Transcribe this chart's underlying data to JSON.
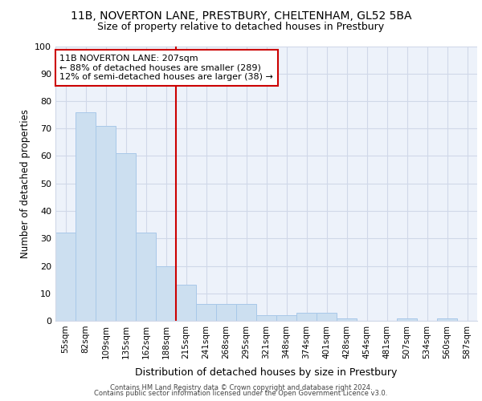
{
  "title1": "11B, NOVERTON LANE, PRESTBURY, CHELTENHAM, GL52 5BA",
  "title2": "Size of property relative to detached houses in Prestbury",
  "xlabel": "Distribution of detached houses by size in Prestbury",
  "ylabel": "Number of detached properties",
  "categories": [
    "55sqm",
    "82sqm",
    "109sqm",
    "135sqm",
    "162sqm",
    "188sqm",
    "215sqm",
    "241sqm",
    "268sqm",
    "295sqm",
    "321sqm",
    "348sqm",
    "374sqm",
    "401sqm",
    "428sqm",
    "454sqm",
    "481sqm",
    "507sqm",
    "534sqm",
    "560sqm",
    "587sqm"
  ],
  "values": [
    32,
    76,
    71,
    61,
    32,
    20,
    13,
    6,
    6,
    6,
    2,
    2,
    3,
    3,
    1,
    0,
    0,
    1,
    0,
    1,
    0
  ],
  "bar_color": "#ccdff0",
  "bar_edgecolor": "#a8c8e8",
  "vline_x_index": 6,
  "vline_color": "#cc0000",
  "annotation_text": "11B NOVERTON LANE: 207sqm\n← 88% of detached houses are smaller (289)\n12% of semi-detached houses are larger (38) →",
  "annotation_box_edgecolor": "#cc0000",
  "ylim": [
    0,
    100
  ],
  "yticks": [
    0,
    10,
    20,
    30,
    40,
    50,
    60,
    70,
    80,
    90,
    100
  ],
  "grid_color": "#d0d8e8",
  "background_color": "#e8eef8",
  "plot_bg_color": "#edf2fa",
  "footer1": "Contains HM Land Registry data © Crown copyright and database right 2024.",
  "footer2": "Contains public sector information licensed under the Open Government Licence v3.0.",
  "title_fontsize": 10,
  "subtitle_fontsize": 9,
  "title_fontweight": "normal"
}
